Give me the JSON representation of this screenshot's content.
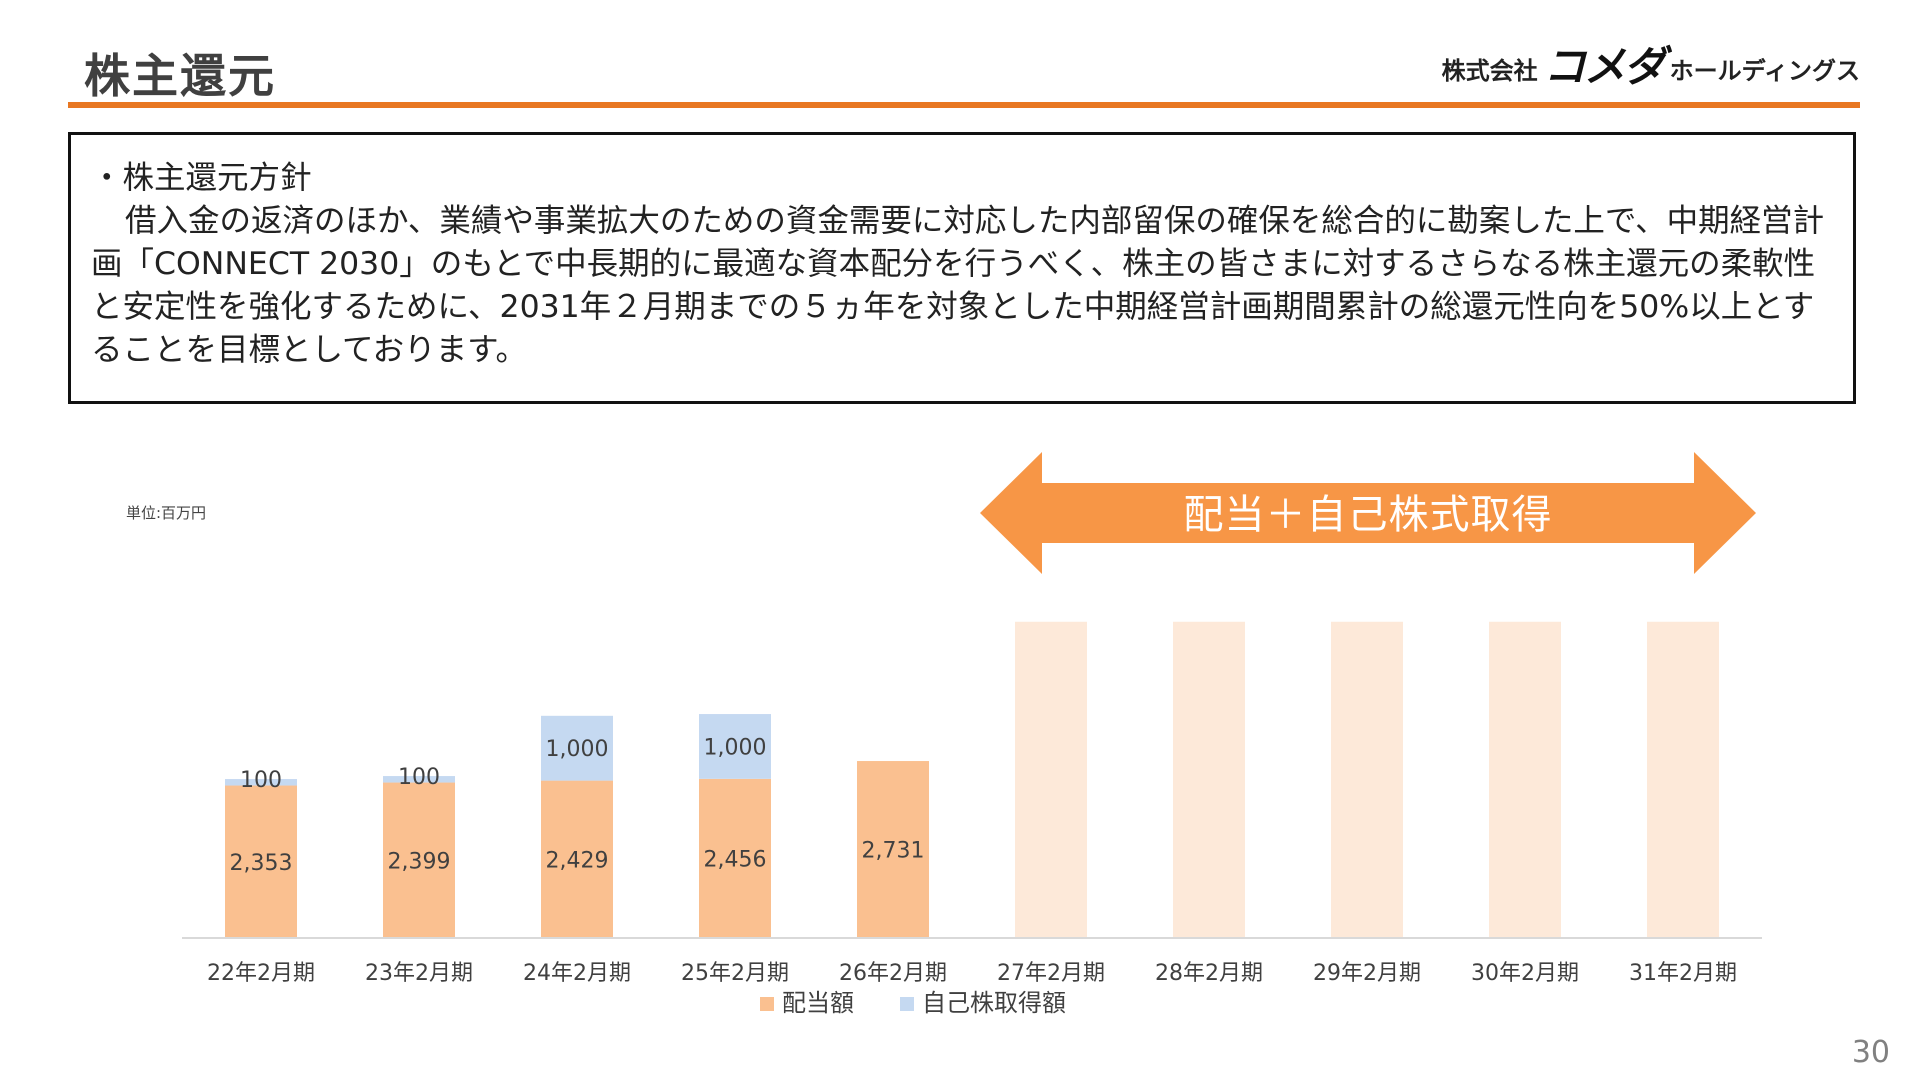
{
  "header": {
    "title": "株主還元",
    "logo_prefix": "株式会社",
    "logo_brand": "コメダ",
    "logo_suffix": "ホールディングス",
    "rule_color": "#E87722"
  },
  "policy": {
    "heading": "・株主還元方針",
    "body": "借入金の返済のほか、業績や事業拡大のための資金需要に対応した内部留保の確保を総合的に勘案した上で、中期経営計画「CONNECT 2030」のもとで中長期的に最適な資本配分を行うべく、株主の皆さまに対するさらなる株主還元の柔軟性と安定性を強化するために、2031年２月期までの５ヵ年を対象とした中期経営計画期間累計の総還元性向を50%以上とすることを目標としております。"
  },
  "banner": {
    "text": "配当＋自己株式取得",
    "color": "#F79646",
    "covers_categories": [
      "27年2月期",
      "31年2月期"
    ]
  },
  "chart_data": {
    "type": "bar",
    "stacked": true,
    "unit_label": "単位:百万円",
    "categories": [
      "22年2月期",
      "23年2月期",
      "24年2月期",
      "25年2月期",
      "26年2月期",
      "27年2月期",
      "28年2月期",
      "29年2月期",
      "30年2月期",
      "31年2月期"
    ],
    "series": [
      {
        "name": "配当額",
        "color": "#FAC090",
        "values": [
          2353,
          2399,
          2429,
          2456,
          2731,
          null,
          null,
          null,
          null,
          null
        ]
      },
      {
        "name": "自己株取得額",
        "color": "#C5D9F1",
        "values": [
          100,
          100,
          1000,
          1000,
          null,
          null,
          null,
          null,
          null,
          null
        ]
      }
    ],
    "data_labels": [
      [
        "2,353",
        "2,399",
        "2,429",
        "2,456",
        "2,731",
        "",
        "",
        "",
        "",
        ""
      ],
      [
        "100",
        "100",
        "1,000",
        "1,000",
        "",
        "",
        "",
        "",
        "",
        ""
      ]
    ],
    "placeholder_color": "#FDE9D9",
    "placeholder_level": 4880,
    "ylim": [
      0,
      5000
    ],
    "grid": false,
    "legend_position": "bottom"
  },
  "page_number": "30"
}
